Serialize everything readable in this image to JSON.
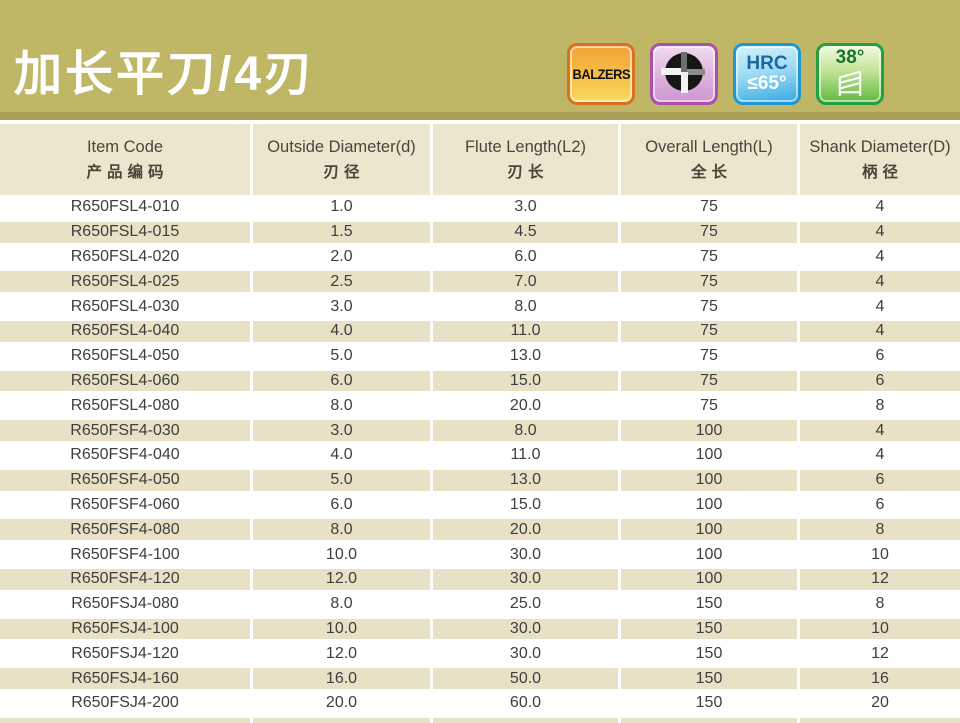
{
  "header": {
    "title": "加长平刀/4刃",
    "badges": {
      "balzers": {
        "label": "BALZERS"
      },
      "flute_cross_section": {
        "icon": "4-flute-cross-section-icon"
      },
      "hardness": {
        "line1": "HRC",
        "line2": "≤65°"
      },
      "helix_angle": {
        "label": "38°",
        "icon": "helix-angle-icon"
      }
    }
  },
  "table": {
    "columns": [
      {
        "en": "Item Code",
        "zh": "产品编码"
      },
      {
        "en": "Outside Diameter(d)",
        "zh": "刃径"
      },
      {
        "en": "Flute Length(L2)",
        "zh": "刃长"
      },
      {
        "en": "Overall Length(L)",
        "zh": "全长"
      },
      {
        "en": "Shank Diameter(D)",
        "zh": "柄径"
      }
    ],
    "rows": [
      [
        "R650FSL4-010",
        "1.0",
        "3.0",
        "75",
        "4"
      ],
      [
        "R650FSL4-015",
        "1.5",
        "4.5",
        "75",
        "4"
      ],
      [
        "R650FSL4-020",
        "2.0",
        "6.0",
        "75",
        "4"
      ],
      [
        "R650FSL4-025",
        "2.5",
        "7.0",
        "75",
        "4"
      ],
      [
        "R650FSL4-030",
        "3.0",
        "8.0",
        "75",
        "4"
      ],
      [
        "R650FSL4-040",
        "4.0",
        "11.0",
        "75",
        "4"
      ],
      [
        "R650FSL4-050",
        "5.0",
        "13.0",
        "75",
        "6"
      ],
      [
        "R650FSL4-060",
        "6.0",
        "15.0",
        "75",
        "6"
      ],
      [
        "R650FSL4-080",
        "8.0",
        "20.0",
        "75",
        "8"
      ],
      [
        "R650FSF4-030",
        "3.0",
        "8.0",
        "100",
        "4"
      ],
      [
        "R650FSF4-040",
        "4.0",
        "11.0",
        "100",
        "4"
      ],
      [
        "R650FSF4-050",
        "5.0",
        "13.0",
        "100",
        "6"
      ],
      [
        "R650FSF4-060",
        "6.0",
        "15.0",
        "100",
        "6"
      ],
      [
        "R650FSF4-080",
        "8.0",
        "20.0",
        "100",
        "8"
      ],
      [
        "R650FSF4-100",
        "10.0",
        "30.0",
        "100",
        "10"
      ],
      [
        "R650FSF4-120",
        "12.0",
        "30.0",
        "100",
        "12"
      ],
      [
        "R650FSJ4-080",
        "8.0",
        "25.0",
        "150",
        "8"
      ],
      [
        "R650FSJ4-100",
        "10.0",
        "30.0",
        "150",
        "10"
      ],
      [
        "R650FSJ4-120",
        "12.0",
        "30.0",
        "150",
        "12"
      ],
      [
        "R650FSJ4-160",
        "16.0",
        "50.0",
        "150",
        "16"
      ],
      [
        "R650FSJ4-200",
        "20.0",
        "60.0",
        "150",
        "20"
      ]
    ]
  },
  "colors": {
    "banner_bg": "#c0b766",
    "strip_bg": "#aa9e55",
    "thead_bg": "#ece6cf",
    "row_alt_bg": "#e8e1c6",
    "badge_orange_border": "#d8731d",
    "badge_purple_border": "#ab4fac",
    "badge_blue_border": "#1e98d5",
    "badge_green_border": "#22a13e"
  }
}
